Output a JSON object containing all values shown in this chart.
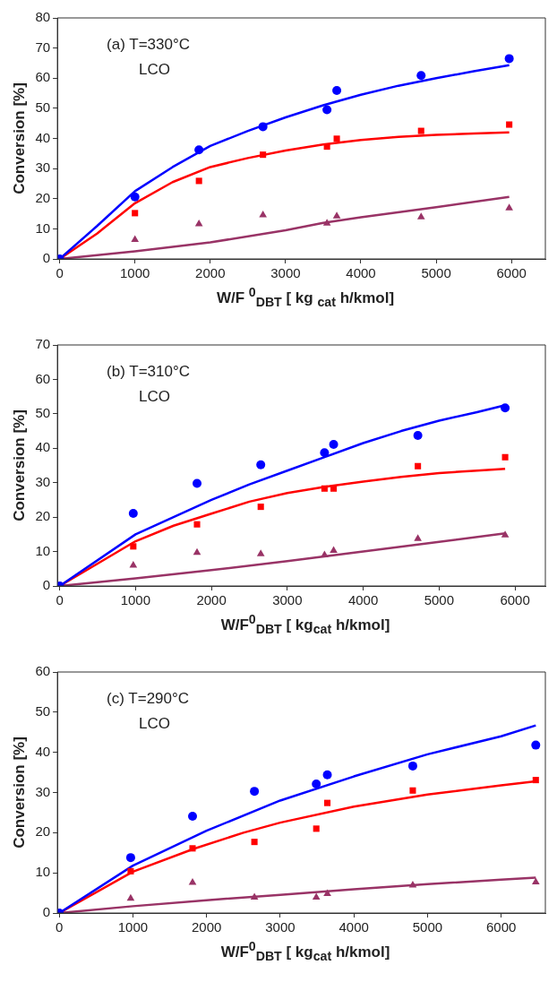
{
  "chart_data": [
    {
      "type": "scatter",
      "annotations": [
        "(a) T=330°C",
        "LCO"
      ],
      "xlabel": "W/F $^{0}$$_{DBT}$ [ kg $_{cat}$ h/kmol]",
      "ylabel": "Conversion [%]",
      "xlim": [
        -30,
        6450
      ],
      "xticks": [
        0,
        1000,
        2000,
        3000,
        4000,
        5000,
        6000
      ],
      "ylim": [
        0,
        80
      ],
      "yticks": [
        0,
        10,
        20,
        30,
        40,
        50,
        60,
        70,
        80
      ],
      "series": [
        {
          "type": "line",
          "color": "#0000ff",
          "marker": "none",
          "x": [
            0,
            500,
            1000,
            1500,
            2000,
            2500,
            3000,
            3500,
            4000,
            4500,
            5000,
            5500,
            5970
          ],
          "values": [
            0,
            11,
            22.5,
            30.5,
            37.5,
            42.5,
            47,
            51,
            54.5,
            57.5,
            60,
            62.3,
            64.3
          ]
        },
        {
          "type": "line",
          "color": "#ff0000",
          "marker": "none",
          "x": [
            0,
            500,
            1000,
            1500,
            2000,
            2500,
            3000,
            3500,
            4000,
            4500,
            5000,
            5500,
            5970
          ],
          "values": [
            0,
            8.5,
            18.5,
            25.5,
            30.5,
            33.5,
            36,
            38,
            39.5,
            40.5,
            41.2,
            41.6,
            42
          ]
        },
        {
          "type": "line",
          "color": "#993366",
          "marker": "none",
          "x": [
            0,
            1000,
            2000,
            3000,
            3500,
            4000,
            5000,
            5970
          ],
          "values": [
            0,
            2.5,
            5.5,
            9.5,
            12,
            13.8,
            17.2,
            20.6
          ]
        },
        {
          "type": "scatter",
          "color": "#0000ff",
          "marker": "circle",
          "x": [
            0,
            1000,
            1850,
            2700,
            3550,
            3680,
            4800,
            5970
          ],
          "values": [
            0,
            20.6,
            36.2,
            43.9,
            49.5,
            55.9,
            60.9,
            66.5
          ]
        },
        {
          "type": "scatter",
          "color": "#ff0000",
          "marker": "square",
          "x": [
            1000,
            1850,
            2700,
            3550,
            3680,
            4800,
            5970
          ],
          "values": [
            15.2,
            25.9,
            34.6,
            37.3,
            39.9,
            42.5,
            44.6
          ]
        },
        {
          "type": "scatter",
          "color": "#993366",
          "marker": "triangle",
          "x": [
            1000,
            1850,
            2700,
            3550,
            3680,
            4800,
            5970
          ],
          "values": [
            6.4,
            11.6,
            14.6,
            11.8,
            14.2,
            13.9,
            16.9
          ]
        }
      ]
    },
    {
      "type": "scatter",
      "annotations": [
        "(b) T=310°C",
        "LCO"
      ],
      "xlabel": "W/F$^{0}$$_{DBT}$ [ kg$_{cat}$ h/kmol]",
      "ylabel": "Conversion [%]",
      "xlim": [
        -30,
        6400
      ],
      "xticks": [
        0,
        1000,
        2000,
        3000,
        4000,
        5000,
        6000
      ],
      "ylim": [
        0,
        70
      ],
      "yticks": [
        0,
        10,
        20,
        30,
        40,
        50,
        60,
        70
      ],
      "series": [
        {
          "type": "line",
          "color": "#0000ff",
          "marker": "none",
          "x": [
            0,
            1000,
            1500,
            2000,
            2500,
            3000,
            3500,
            4000,
            4500,
            5000,
            5500,
            5870
          ],
          "values": [
            0,
            15,
            20,
            25,
            29.5,
            33.5,
            37.5,
            41.5,
            45,
            48,
            50.5,
            52.5
          ]
        },
        {
          "type": "line",
          "color": "#ff0000",
          "marker": "none",
          "x": [
            0,
            1000,
            1500,
            2000,
            2500,
            3000,
            3500,
            4000,
            4500,
            5000,
            5500,
            5870
          ],
          "values": [
            0,
            13,
            17.5,
            21,
            24.5,
            27,
            28.8,
            30.3,
            31.7,
            32.8,
            33.5,
            34
          ]
        },
        {
          "type": "line",
          "color": "#993366",
          "marker": "none",
          "x": [
            0,
            1000,
            2000,
            3000,
            4000,
            5000,
            5870
          ],
          "values": [
            0,
            2.2,
            4.6,
            7.2,
            10,
            12.8,
            15.3
          ]
        },
        {
          "type": "scatter",
          "color": "#0000ff",
          "marker": "circle",
          "x": [
            0,
            970,
            1810,
            2650,
            3490,
            3610,
            4720,
            5870
          ],
          "values": [
            0,
            21.1,
            29.8,
            35.2,
            38.7,
            41.1,
            43.7,
            51.7
          ]
        },
        {
          "type": "scatter",
          "color": "#ff0000",
          "marker": "square",
          "x": [
            970,
            1810,
            2650,
            3490,
            3610,
            4720,
            5870
          ],
          "values": [
            11.5,
            17.9,
            23,
            28.3,
            28.3,
            34.8,
            37.4
          ]
        },
        {
          "type": "scatter",
          "color": "#993366",
          "marker": "triangle",
          "x": [
            970,
            1810,
            2650,
            3490,
            3610,
            4720,
            5870
          ],
          "values": [
            6,
            9.7,
            9.3,
            9,
            10.3,
            13.7,
            14.8
          ]
        }
      ]
    },
    {
      "type": "scatter",
      "annotations": [
        "(c) T=290°C",
        "LCO"
      ],
      "xlabel": "W/F$^{0}$$_{DBT}$ [ kg$_{cat}$ h/kmol]",
      "ylabel": "Conversion [%]",
      "xlim": [
        -25,
        6600
      ],
      "xticks": [
        0,
        1000,
        2000,
        3000,
        4000,
        5000,
        6000
      ],
      "ylim": [
        0,
        60
      ],
      "yticks": [
        0,
        10,
        20,
        30,
        40,
        50,
        60
      ],
      "series": [
        {
          "type": "line",
          "color": "#0000ff",
          "marker": "none",
          "x": [
            0,
            1000,
            2000,
            3000,
            4000,
            5000,
            6000,
            6470
          ],
          "values": [
            0,
            11.8,
            20.5,
            28,
            34,
            39.5,
            44,
            46.7
          ]
        },
        {
          "type": "line",
          "color": "#ff0000",
          "marker": "none",
          "x": [
            0,
            1000,
            1830,
            2500,
            3000,
            4000,
            5000,
            6000,
            6470
          ],
          "values": [
            0,
            10.3,
            16,
            20,
            22.5,
            26.5,
            29.5,
            31.8,
            32.8
          ]
        },
        {
          "type": "line",
          "color": "#993366",
          "marker": "none",
          "x": [
            0,
            1000,
            2000,
            3000,
            4000,
            5000,
            6000,
            6470
          ],
          "values": [
            0,
            1.7,
            3.2,
            4.5,
            5.9,
            7.2,
            8.3,
            8.8
          ]
        },
        {
          "type": "scatter",
          "color": "#0000ff",
          "marker": "circle",
          "x": [
            0,
            970,
            1810,
            2650,
            3490,
            3640,
            4800,
            6470
          ],
          "values": [
            0,
            13.8,
            24.1,
            30.3,
            32.1,
            34.4,
            36.6,
            41.8
          ]
        },
        {
          "type": "scatter",
          "color": "#ff0000",
          "marker": "square",
          "x": [
            970,
            1810,
            2650,
            3490,
            3640,
            4800,
            6470
          ],
          "values": [
            10.4,
            16.1,
            17.7,
            21,
            27.4,
            30.5,
            33.1
          ]
        },
        {
          "type": "scatter",
          "color": "#993366",
          "marker": "triangle",
          "x": [
            970,
            1810,
            2650,
            3490,
            3640,
            4800,
            6470
          ],
          "values": [
            3.6,
            7.6,
            3.9,
            3.9,
            4.8,
            6.9,
            7.7
          ]
        }
      ]
    }
  ]
}
